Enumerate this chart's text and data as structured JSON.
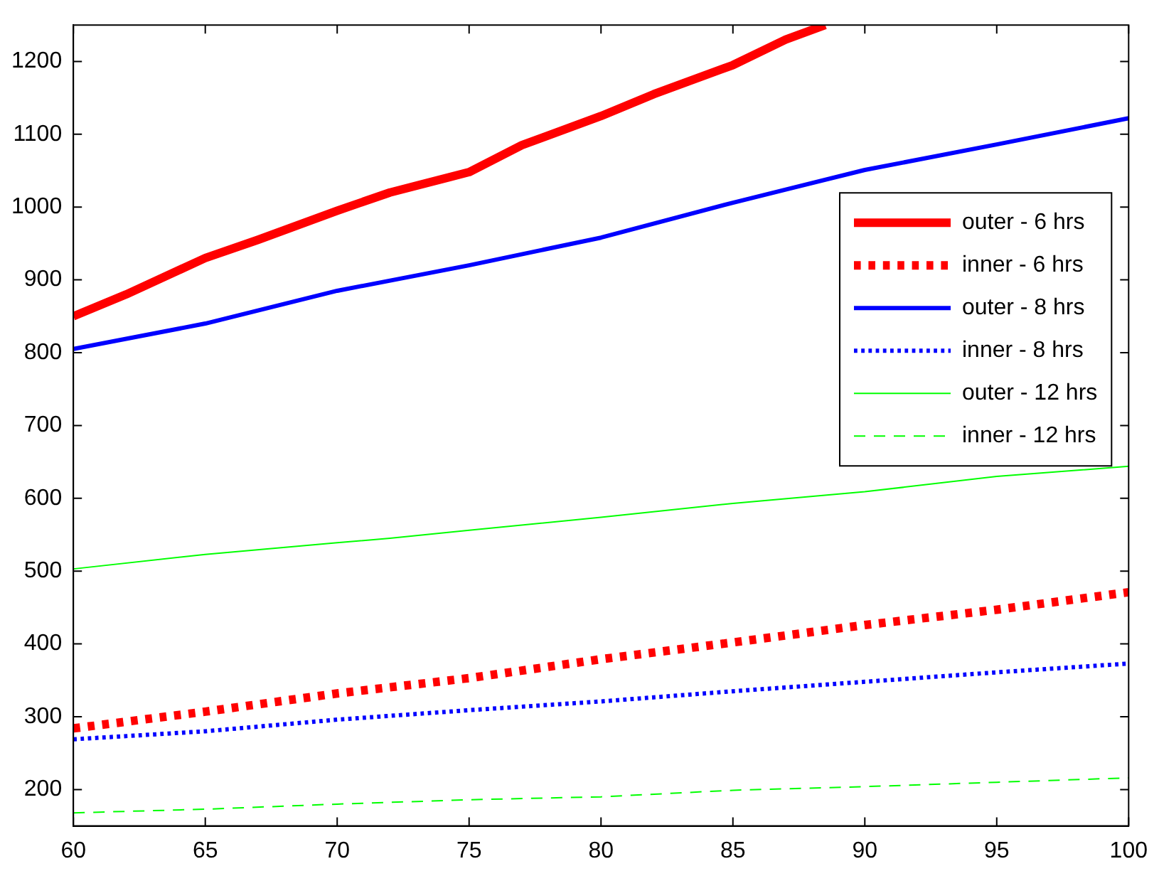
{
  "chart_data": {
    "type": "line",
    "xlim": [
      60,
      100
    ],
    "ylim": [
      150,
      1250
    ],
    "xticks": [
      60,
      65,
      70,
      75,
      80,
      85,
      90,
      95,
      100
    ],
    "yticks": [
      200,
      300,
      400,
      500,
      600,
      700,
      800,
      900,
      1000,
      1100,
      1200
    ],
    "legend": "top right",
    "marker": "none",
    "series": [
      {
        "name": "outer - 6 hrs",
        "color": "#ff0000",
        "line_style": "solid",
        "x": [
          60,
          62,
          65,
          67,
          70,
          72,
          75,
          77,
          80,
          82,
          85,
          87,
          88.5
        ],
        "values": [
          850,
          880,
          930,
          955,
          995,
          1020,
          1048,
          1085,
          1125,
          1155,
          1195,
          1230,
          1250
        ]
      },
      {
        "name": "inner - 6 hrs",
        "color": "#ff0000",
        "line_style": "dotted",
        "x": [
          60,
          65,
          70,
          75,
          80,
          85,
          90,
          95,
          100
        ],
        "values": [
          284,
          307,
          332,
          353,
          379,
          402,
          426,
          447,
          471
        ]
      },
      {
        "name": "outer - 8 hrs",
        "color": "#0000ff",
        "line_style": "solid",
        "x": [
          60,
          65,
          70,
          75,
          80,
          85,
          87,
          90,
          95,
          100
        ],
        "values": [
          805,
          840,
          885,
          920,
          958,
          1006,
          1024,
          1051,
          1086,
          1122
        ]
      },
      {
        "name": "inner - 8 hrs",
        "color": "#0000ff",
        "line_style": "dotted",
        "x": [
          60,
          65,
          70,
          75,
          80,
          85,
          90,
          95,
          100
        ],
        "values": [
          269,
          280,
          296,
          309,
          321,
          335,
          348,
          361,
          373
        ]
      },
      {
        "name": "outer - 12 hrs",
        "color": "#00ff00",
        "line_style": "solid",
        "x": [
          60,
          65,
          70,
          72,
          75,
          80,
          85,
          90,
          95,
          100
        ],
        "values": [
          503,
          523,
          539,
          545,
          556,
          574,
          593,
          609,
          630,
          644
        ]
      },
      {
        "name": "inner - 12 hrs",
        "color": "#00ff00",
        "line_style": "dashed",
        "x": [
          60,
          65,
          70,
          75,
          80,
          85,
          90,
          95,
          100
        ],
        "values": [
          168,
          173,
          180,
          186,
          190,
          199,
          204,
          210,
          216
        ]
      }
    ]
  }
}
